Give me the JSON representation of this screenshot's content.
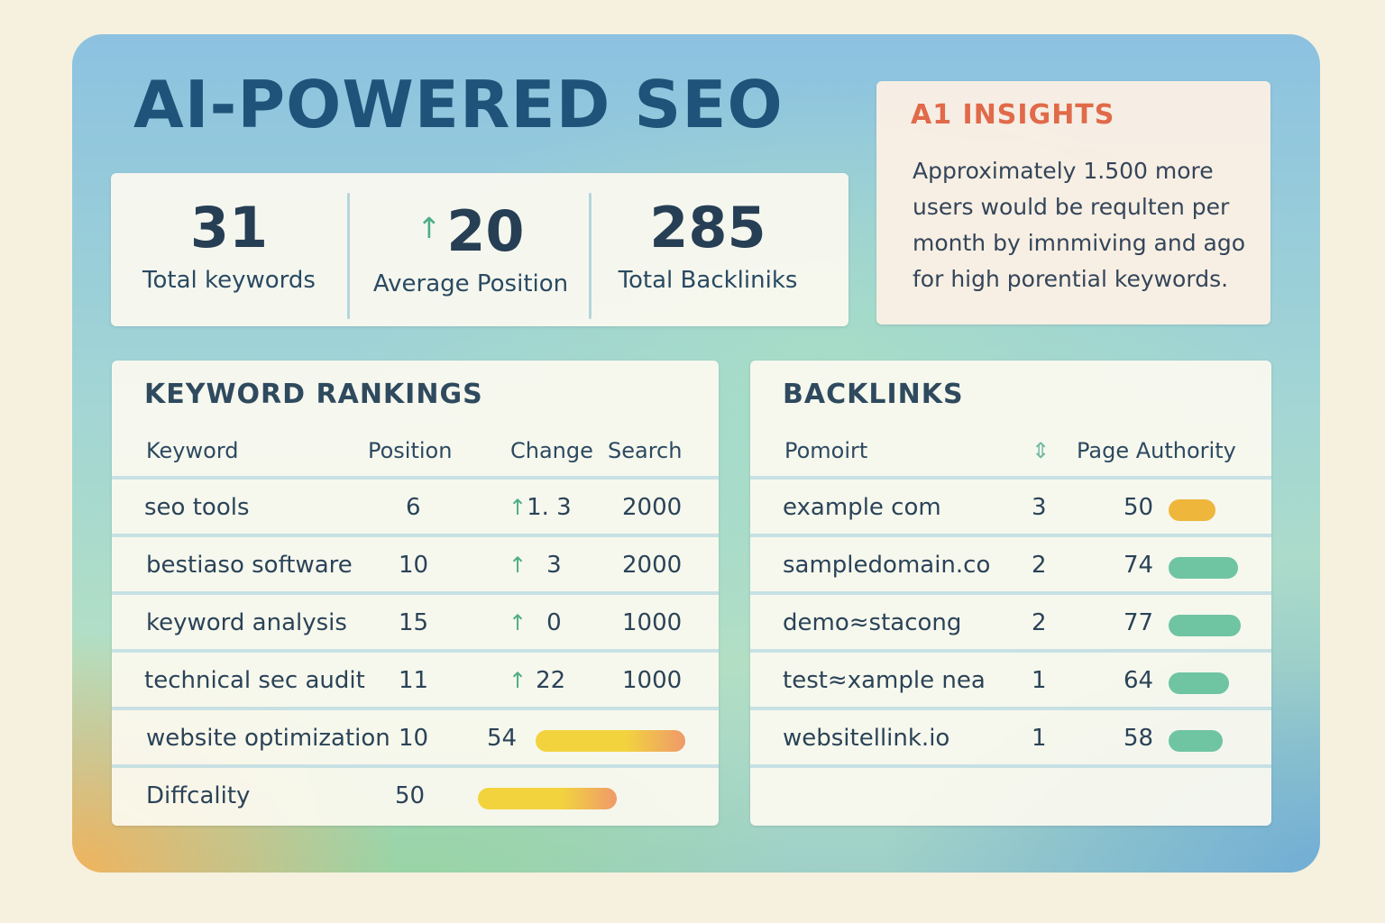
{
  "title": "AI-POWERED SEO",
  "stats": [
    {
      "value": "31",
      "label": "Total keywords",
      "arrow": ""
    },
    {
      "value": "20",
      "label": "Average Position",
      "arrow": "↑"
    },
    {
      "value": "285",
      "label": "Total Backliniks",
      "arrow": ""
    }
  ],
  "insights": {
    "heading": "A1 INSIGHTS",
    "text": "Approximately 1.500 more users would be requlten per month by imnmiving and ago for high porential keywords."
  },
  "keywords": {
    "title": "KEYWORD RANKINGS",
    "headers": {
      "keyword": "Keyword",
      "position": "Position",
      "change": "Change",
      "search": "Search"
    },
    "rows": [
      {
        "keyword": "seo tools",
        "position": "6",
        "change": "1. 3",
        "search": "2000"
      },
      {
        "keyword": "bestiaso software",
        "position": "10",
        "change": "3",
        "search": "2000"
      },
      {
        "keyword": "keyword analysis",
        "position": "15",
        "change": "0",
        "search": "1000"
      },
      {
        "keyword": "technical sec audit",
        "position": "11",
        "change": "22",
        "search": "1000"
      }
    ],
    "bar_rows": [
      {
        "keyword": "website optimization",
        "position": "10",
        "value": "54",
        "level": 0.54
      },
      {
        "keyword": "Diffcality",
        "position": "50",
        "value": "",
        "level": 0.5
      }
    ],
    "change_arrow": "↑"
  },
  "backlinks": {
    "title": "BACKLINKS",
    "headers": {
      "domain": "Pomoirt",
      "count": "⇕",
      "authority": "Page Authority"
    },
    "rows": [
      {
        "domain": "example com",
        "count": "3",
        "authority": "50",
        "level": 0.5,
        "color": "#efb63c"
      },
      {
        "domain": "sampledomain.co",
        "count": "2",
        "authority": "74",
        "level": 0.74,
        "color": "#6fc4a2"
      },
      {
        "domain": "demo≈stacong",
        "count": "2",
        "authority": "77",
        "level": 0.77,
        "color": "#6fc4a2"
      },
      {
        "domain": "test≈xample nea",
        "count": "1",
        "authority": "64",
        "level": 0.64,
        "color": "#6fc4a2"
      },
      {
        "domain": "websitellink.io",
        "count": "1",
        "authority": "58",
        "level": 0.58,
        "color": "#6fc4a2"
      }
    ]
  },
  "colors": {
    "accent": "#1f5379",
    "insight": "#e06a4a",
    "up": "#4fae86",
    "bar_warm_start": "#f2d33e",
    "bar_warm_end": "#ef9a6a"
  }
}
